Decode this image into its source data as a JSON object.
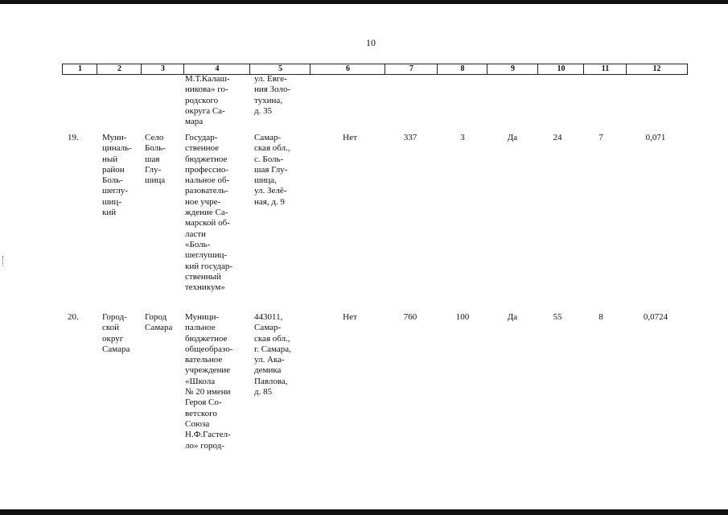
{
  "page_number": "10",
  "columns": [
    "1",
    "2",
    "3",
    "4",
    "5",
    "6",
    "7",
    "8",
    "9",
    "10",
    "11",
    "12"
  ],
  "continuation": {
    "col4": "М.Т.Калаш-\nникова» го-\nродского\nокруга Са-\nмара",
    "col5": "ул. Евге-\nния Золо-\nтухина,\nд. 35"
  },
  "rows": [
    {
      "no": "19.",
      "municipality": "Муни-\nциналь-\nный\nрайон\nБоль-\nшеглу-\nшиц-\nкий",
      "settlement": "Село\nБоль-\nшая\nГлу-\nшица",
      "institution": "Государ-\nственное\nбюджетное\nпрофессио-\nнальное об-\nразователь-\nное учре-\nждение Са-\nмарской об-\nласти\n«Боль-\nшеглушиц-\nкий государ-\nственный\nтехникум»",
      "address": "Самар-\nская обл.,\nс. Боль-\nшая Глу-\nшица,\nул. Зелё-\nная, д. 9",
      "c6": "Нет",
      "c7": "337",
      "c8": "3",
      "c9": "Да",
      "c10": "24",
      "c11": "7",
      "c12": "0,071"
    },
    {
      "no": "20.",
      "municipality": "Город-\nской\nокруг\nСамара",
      "settlement": "Город\nСамара",
      "institution": "Муници-\nпальное\nбюджетное\nобщеобразо-\nвательное\nучреждение\n«Школа\n№ 20 имени\nГероя Со-\nветского\nСоюза\nН.Ф.Гастел-\nло» город-",
      "address": "443011,\nСамар-\nская обл.,\nг. Самара,\nул. Ака-\nдемика\nПавлова,\nд. 85",
      "c6": "Нет",
      "c7": "760",
      "c8": "100",
      "c9": "Да",
      "c10": "55",
      "c11": "8",
      "c12": "0,0724"
    }
  ]
}
